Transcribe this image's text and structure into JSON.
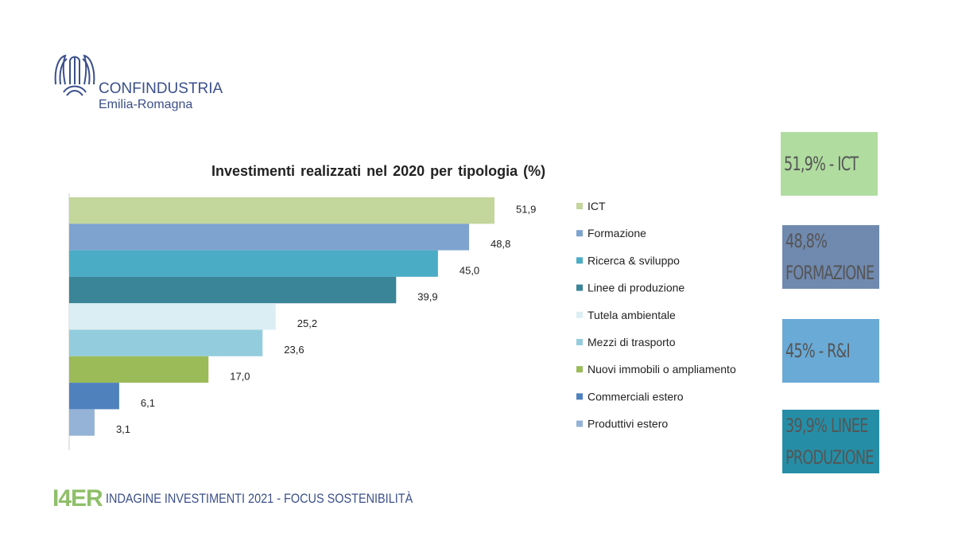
{
  "logo": {
    "name": "CONFINDUSTRIA",
    "sub": "Emilia-Romagna"
  },
  "chart_data": {
    "type": "bar",
    "orientation": "horizontal",
    "title": "Investimenti  realizzati  nel 2020 per tipologia  (%)",
    "categories": [
      "ICT",
      "Formazione",
      "Ricerca & sviluppo",
      "Linee di produzione",
      "Tutela ambientale",
      "Mezzi di trasporto",
      "Nuovi immobili o ampliamento",
      "Commerciali estero",
      "Produttivi estero"
    ],
    "values": [
      51.9,
      48.8,
      45.0,
      39.9,
      25.2,
      23.6,
      17.0,
      6.1,
      3.1
    ],
    "labels": [
      "51,9",
      "48,8",
      "45,0",
      "39,9",
      "25,2",
      "23,6",
      "17,0",
      "6,1",
      "3,1"
    ],
    "colors": [
      "#c3d69b",
      "#7fa3cf",
      "#4bacc6",
      "#3a8598",
      "#dbeef4",
      "#93cddd",
      "#9bbb59",
      "#4f81bd",
      "#95b3d7"
    ],
    "xlim": [
      0,
      60
    ],
    "legend": "right",
    "grid": false
  },
  "highlights": [
    {
      "lines": [
        "51,9% - ICT"
      ],
      "color": "#b0dca0"
    },
    {
      "lines": [
        "48,8%",
        "FORMAZIONE"
      ],
      "color": "#7089ae"
    },
    {
      "lines": [
        "45% - R&I"
      ],
      "color": "#6aaad6"
    },
    {
      "lines": [
        "39,9% LINEE",
        "PRODUZIONE"
      ],
      "color": "#258ea6"
    }
  ],
  "footer": {
    "brand": "I4ER",
    "text": "INDAGINE INVESTIMENTI 2021 - FOCUS SOSTENIBILITÀ"
  }
}
